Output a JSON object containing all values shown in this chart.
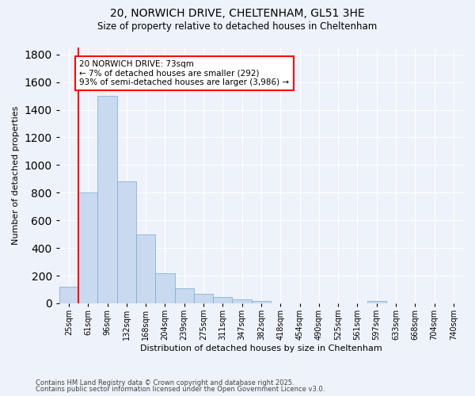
{
  "title1": "20, NORWICH DRIVE, CHELTENHAM, GL51 3HE",
  "title2": "Size of property relative to detached houses in Cheltenham",
  "xlabel": "Distribution of detached houses by size in Cheltenham",
  "ylabel": "Number of detached properties",
  "bin_labels": [
    "25sqm",
    "61sqm",
    "96sqm",
    "132sqm",
    "168sqm",
    "204sqm",
    "239sqm",
    "275sqm",
    "311sqm",
    "347sqm",
    "382sqm",
    "418sqm",
    "454sqm",
    "490sqm",
    "525sqm",
    "561sqm",
    "597sqm",
    "633sqm",
    "668sqm",
    "704sqm",
    "740sqm"
  ],
  "bar_heights": [
    120,
    800,
    1500,
    880,
    500,
    215,
    110,
    70,
    45,
    30,
    20,
    0,
    0,
    0,
    0,
    0,
    15,
    0,
    0,
    0,
    0
  ],
  "bar_color": "#c8d9f0",
  "bar_edge_color": "#7aaad0",
  "vline_color": "red",
  "vline_pos": 0.5,
  "annotation_text": "20 NORWICH DRIVE: 73sqm\n← 7% of detached houses are smaller (292)\n93% of semi-detached houses are larger (3,986) →",
  "annotation_box_color": "white",
  "annotation_box_edge": "red",
  "ylim": [
    0,
    1850
  ],
  "yticks": [
    0,
    200,
    400,
    600,
    800,
    1000,
    1200,
    1400,
    1600,
    1800
  ],
  "footnote1": "Contains HM Land Registry data © Crown copyright and database right 2025.",
  "footnote2": "Contains public sector information licensed under the Open Government Licence v3.0.",
  "bg_color": "#eef2fa",
  "grid_color": "white"
}
